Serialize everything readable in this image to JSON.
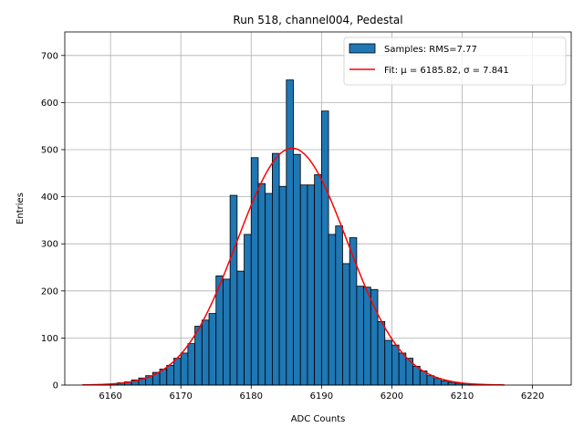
{
  "chart_data": {
    "type": "bar",
    "title": "Run 518, channel004, Pedestal",
    "xlabel": "ADC Counts",
    "ylabel": "Entries",
    "xlim": [
      6153.5,
      6225.5
    ],
    "ylim": [
      0,
      750
    ],
    "xticks": [
      6160,
      6170,
      6180,
      6190,
      6200,
      6210,
      6220
    ],
    "yticks": [
      0,
      100,
      200,
      300,
      400,
      500,
      600,
      700
    ],
    "grid": true,
    "legend_position": "top-right",
    "histogram": {
      "name": "Samples: RMS=7.77",
      "color": "#1f77b4",
      "edge_color": "#000000",
      "bin_width": 1,
      "bin_starts": [
        6158,
        6159,
        6160,
        6161,
        6162,
        6163,
        6164,
        6165,
        6166,
        6167,
        6168,
        6169,
        6170,
        6171,
        6172,
        6173,
        6174,
        6175,
        6176,
        6177,
        6178,
        6179,
        6180,
        6181,
        6182,
        6183,
        6184,
        6185,
        6186,
        6187,
        6188,
        6189,
        6190,
        6191,
        6192,
        6193,
        6194,
        6195,
        6196,
        6197,
        6198,
        6199,
        6200,
        6201,
        6202,
        6203,
        6204,
        6205,
        6206,
        6207,
        6208,
        6209,
        6210,
        6211,
        6212,
        6213
      ],
      "counts": [
        1,
        2,
        3,
        5,
        7,
        11,
        15,
        20,
        27,
        34,
        42,
        57,
        68,
        88,
        125,
        138,
        152,
        232,
        225,
        403,
        242,
        320,
        483,
        428,
        407,
        492,
        422,
        648,
        490,
        425,
        425,
        447,
        582,
        320,
        338,
        258,
        313,
        210,
        208,
        203,
        135,
        95,
        85,
        68,
        57,
        40,
        30,
        20,
        14,
        9,
        6,
        4,
        3,
        2,
        1,
        1
      ]
    },
    "fit": {
      "name": "Fit: μ = 6185.82, σ = 7.841",
      "color": "#ff0000",
      "mu": 6185.82,
      "sigma": 7.841,
      "amplitude": 503,
      "x_range": [
        6156,
        6216
      ]
    }
  }
}
